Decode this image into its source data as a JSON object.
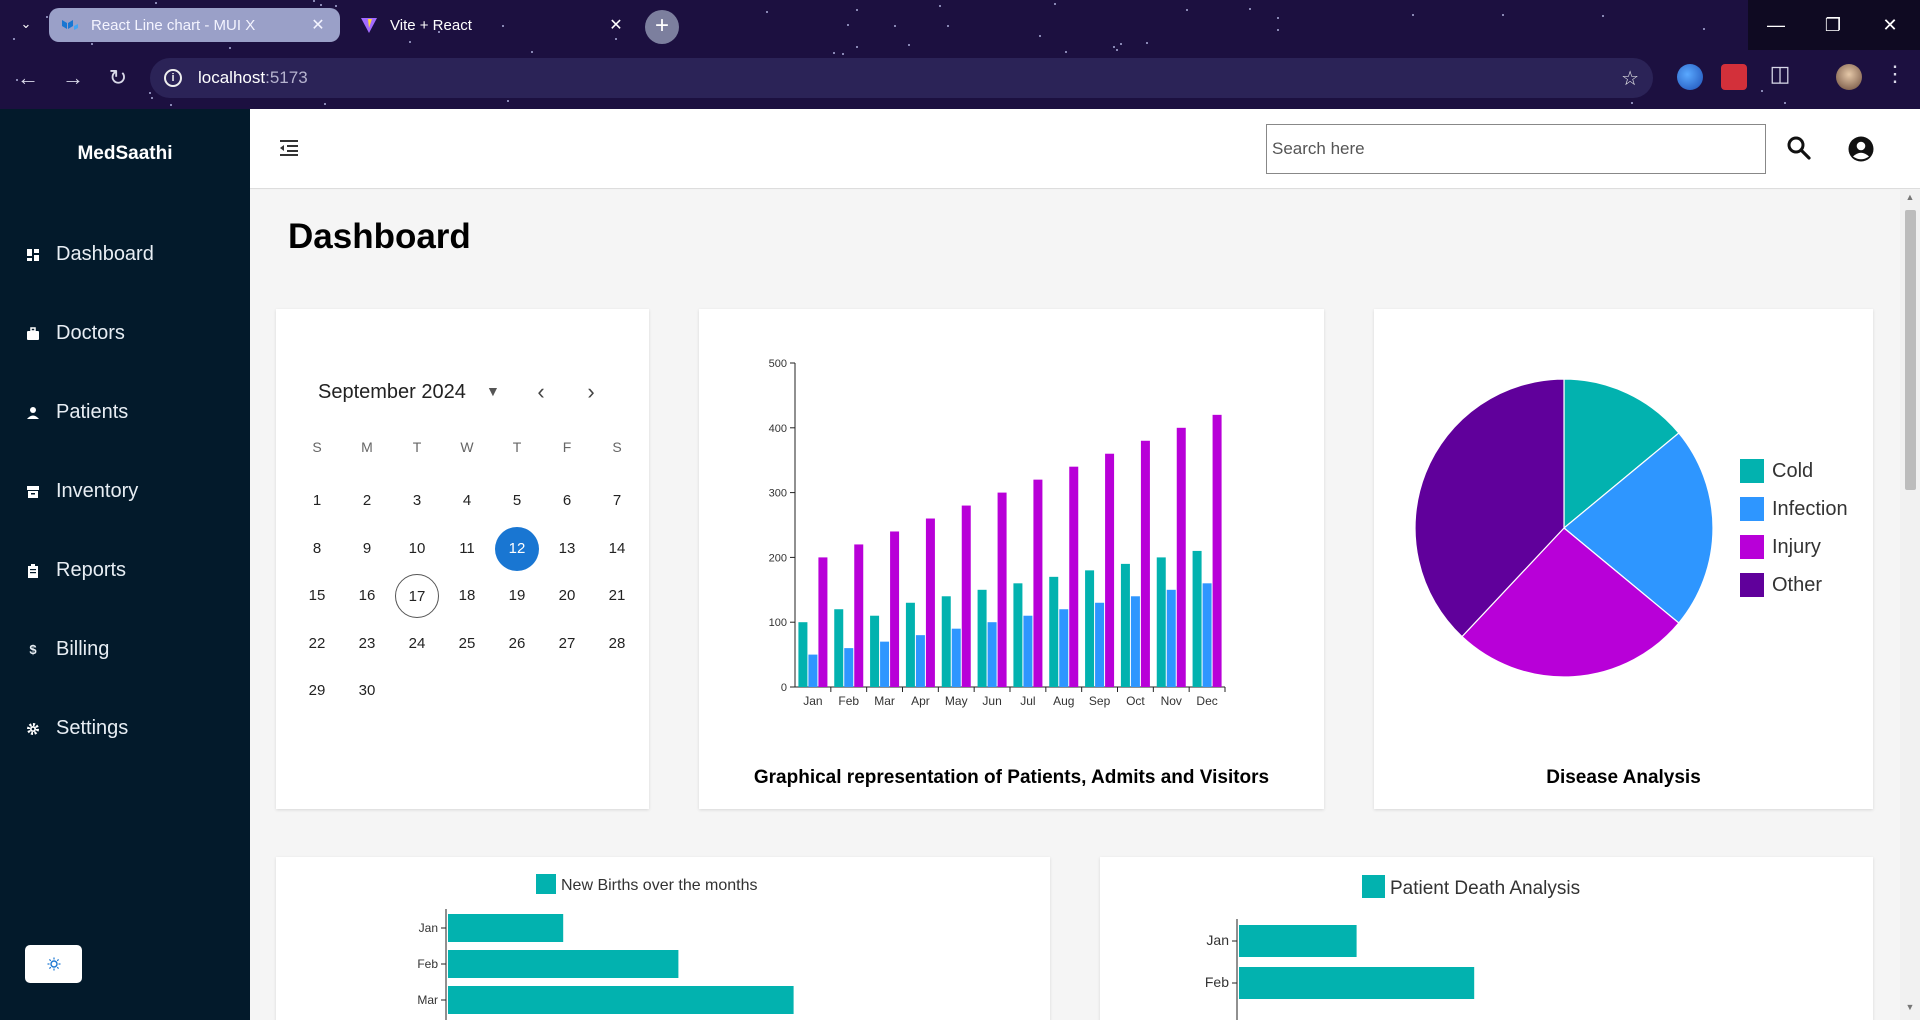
{
  "browser": {
    "tabs": [
      {
        "label": "React Line chart - MUI X",
        "active": true
      },
      {
        "label": "Vite + React",
        "active": false
      }
    ],
    "url_host": "localhost",
    "url_port": ":5173"
  },
  "sidebar": {
    "brand": "MedSaathi",
    "items": [
      {
        "label": "Dashboard",
        "icon": "dashboard-icon"
      },
      {
        "label": "Doctors",
        "icon": "briefcase-icon"
      },
      {
        "label": "Patients",
        "icon": "person-icon"
      },
      {
        "label": "Inventory",
        "icon": "inventory-icon"
      },
      {
        "label": "Reports",
        "icon": "clipboard-icon"
      },
      {
        "label": "Billing",
        "icon": "dollar-icon"
      },
      {
        "label": "Settings",
        "icon": "gear-icon"
      }
    ]
  },
  "topbar": {
    "search_placeholder": "Search here"
  },
  "page": {
    "title": "Dashboard"
  },
  "calendar": {
    "month_label": "September 2024",
    "weekdays": [
      "S",
      "M",
      "T",
      "W",
      "T",
      "F",
      "S"
    ],
    "first_weekday_index": 0,
    "days_in_month": 30,
    "selected_day": 12,
    "today": 17
  },
  "chart_data": [
    {
      "type": "bar",
      "title": "Graphical representation of Patients, Admits and Visitors",
      "categories": [
        "Jan",
        "Feb",
        "Mar",
        "Apr",
        "May",
        "Jun",
        "Jul",
        "Aug",
        "Sep",
        "Oct",
        "Nov",
        "Dec"
      ],
      "ylim": [
        0,
        500
      ],
      "yticks": [
        0,
        100,
        200,
        300,
        400,
        500
      ],
      "series": [
        {
          "color": "#02b2af",
          "values": [
            100,
            120,
            110,
            130,
            140,
            150,
            160,
            170,
            180,
            190,
            200,
            210
          ]
        },
        {
          "color": "#2e96ff",
          "values": [
            50,
            60,
            70,
            80,
            90,
            100,
            110,
            120,
            130,
            140,
            150,
            160
          ]
        },
        {
          "color": "#b800d8",
          "values": [
            200,
            220,
            240,
            260,
            280,
            300,
            320,
            340,
            360,
            380,
            400,
            420
          ]
        }
      ]
    },
    {
      "type": "pie",
      "title": "Disease Analysis",
      "legend_placement": "right",
      "slices": [
        {
          "label": "Cold",
          "value": 14,
          "color": "#02b2af"
        },
        {
          "label": "Infection",
          "value": 22,
          "color": "#2e96ff"
        },
        {
          "label": "Injury",
          "value": 26,
          "color": "#b800d8"
        },
        {
          "label": "Other",
          "value": 38,
          "color": "#60009b"
        }
      ]
    },
    {
      "type": "bar",
      "orientation": "horizontal",
      "legend": "New Births over the months",
      "color": "#02b2af",
      "categories": [
        "Jan",
        "Feb",
        "Mar"
      ],
      "values": [
        120,
        240,
        360
      ],
      "xlim": [
        0,
        500
      ]
    },
    {
      "type": "bar",
      "orientation": "horizontal",
      "legend": "Patient Death Analysis",
      "color": "#02b2af",
      "categories": [
        "Jan",
        "Feb"
      ],
      "values": [
        140,
        280
      ],
      "xlim": [
        0,
        500
      ]
    }
  ]
}
